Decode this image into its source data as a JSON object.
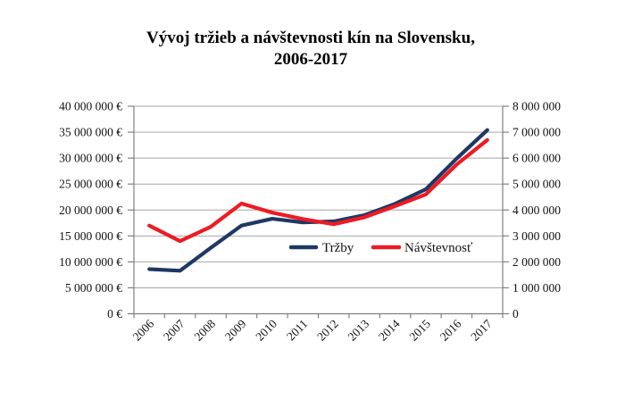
{
  "title": {
    "line1": "Vývoj tržieb a návštevnosti kín na Slovensku,",
    "line2": "2006-2017"
  },
  "chart_data": {
    "type": "line",
    "categories": [
      "2006",
      "2007",
      "2008",
      "2009",
      "2010",
      "2011",
      "2012",
      "2013",
      "2014",
      "2015",
      "2016",
      "2017"
    ],
    "series": [
      {
        "id": "trzby",
        "name": "Tržby",
        "axis": "left",
        "color": "#1F3864",
        "values": [
          8600000,
          8300000,
          12700000,
          17000000,
          18300000,
          17600000,
          17800000,
          19000000,
          21200000,
          24000000,
          29900000,
          35400000
        ]
      },
      {
        "id": "navstevnost",
        "name": "Návštevnosť",
        "axis": "right",
        "color": "#ED1B23",
        "values": [
          3400000,
          2800000,
          3350000,
          4250000,
          3900000,
          3650000,
          3450000,
          3720000,
          4150000,
          4600000,
          5750000,
          6700000
        ]
      }
    ],
    "left_axis": {
      "min": 0,
      "max": 40000000,
      "step": 5000000,
      "tick_labels": [
        "0 €",
        "5 000 000 €",
        "10 000 000 €",
        "15 000 000 €",
        "20 000 000 €",
        "25 000 000 €",
        "30 000 000 €",
        "35 000 000 €",
        "40 000 000 €"
      ]
    },
    "right_axis": {
      "min": 0,
      "max": 8000000,
      "step": 1000000,
      "tick_labels": [
        "0",
        "1 000 000",
        "2 000 000",
        "3 000 000",
        "4 000 000",
        "5 000 000",
        "6 000 000",
        "7 000 000",
        "8 000 000"
      ]
    },
    "grid": true,
    "legend_position": "inside-center"
  },
  "colors": {
    "grid": "#A6A6A6",
    "axis": "#808080",
    "text": "#111111",
    "title": "#000000",
    "background": "#FFFFFF"
  }
}
